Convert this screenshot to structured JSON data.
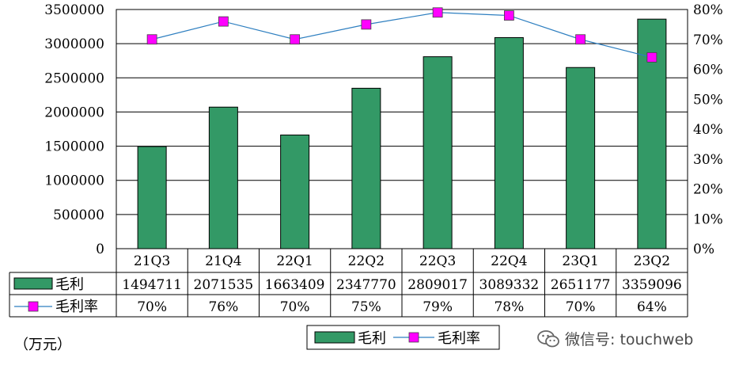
{
  "chart_data": {
    "type": "bar",
    "categories": [
      "21Q3",
      "21Q4",
      "22Q1",
      "22Q2",
      "22Q3",
      "22Q4",
      "23Q1",
      "23Q2"
    ],
    "series": [
      {
        "name": "毛利",
        "type": "bar",
        "axis": "left",
        "color": "#339966",
        "values": [
          1494711,
          2071535,
          1663409,
          2347770,
          2809017,
          3089332,
          2651177,
          3359096
        ]
      },
      {
        "name": "毛利率",
        "type": "line",
        "axis": "right",
        "line_color": "#2e7fc0",
        "marker_color": "#ff00ff",
        "values": [
          70,
          76,
          70,
          75,
          79,
          78,
          70,
          64
        ]
      }
    ],
    "table_rows": [
      [
        "1494711",
        "2071535",
        "1663409",
        "2347770",
        "2809017",
        "3089332",
        "2651177",
        "3359096"
      ],
      [
        "70%",
        "76%",
        "70%",
        "75%",
        "79%",
        "78%",
        "70%",
        "64%"
      ]
    ],
    "ylim": [
      0,
      3500000
    ],
    "y_ticks": [
      "0",
      "500000",
      "1000000",
      "1500000",
      "2000000",
      "2500000",
      "3000000",
      "3500000"
    ],
    "y2lim": [
      0,
      80
    ],
    "y2_ticks": [
      "0%",
      "10%",
      "20%",
      "30%",
      "40%",
      "50%",
      "60%",
      "70%",
      "80%"
    ],
    "unit_label": "（万元）",
    "legend_position": "bottom",
    "grid": true
  },
  "watermark": {
    "text": "微信号: touchweb",
    "icon": "wechat-icon"
  }
}
